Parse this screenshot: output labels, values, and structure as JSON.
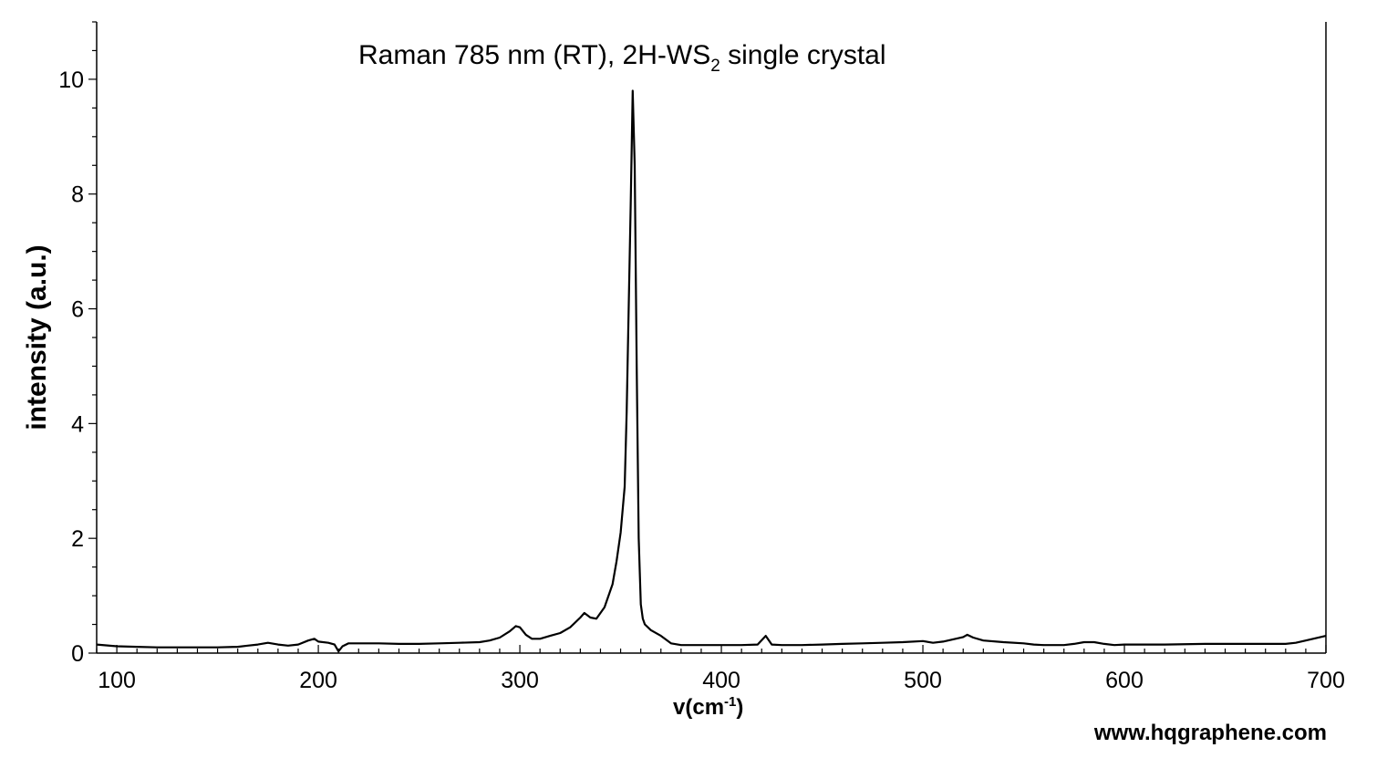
{
  "chart_data": {
    "type": "line",
    "title": {
      "prefix": "Raman 785 nm (RT), 2H-WS",
      "subscript": "2",
      "suffix": " single crystal"
    },
    "xlabel": {
      "text": "v(cm",
      "superscript": "-1",
      "suffix": ")"
    },
    "ylabel": "intensity (a.u.)",
    "xlim": [
      90,
      700
    ],
    "ylim": [
      0,
      11
    ],
    "x_ticks": [
      100,
      200,
      300,
      400,
      500,
      600,
      700
    ],
    "y_ticks": [
      0,
      2,
      4,
      6,
      8,
      10
    ],
    "grid": false,
    "legend": "none",
    "line_color": "#000000",
    "series": [
      {
        "x": [
          90,
          100,
          110,
          120,
          130,
          140,
          150,
          160,
          165,
          170,
          175,
          180,
          185,
          190,
          195,
          198,
          200,
          205,
          208,
          210,
          212,
          215,
          220,
          230,
          240,
          250,
          260,
          270,
          280,
          285,
          290,
          295,
          298,
          300,
          303,
          306,
          310,
          315,
          320,
          325,
          330,
          332,
          335,
          338,
          342,
          346,
          348,
          350,
          352,
          353,
          355,
          356,
          357,
          358,
          359,
          360,
          361,
          362,
          365,
          370,
          375,
          380,
          390,
          400,
          410,
          418,
          422,
          425,
          430,
          440,
          450,
          460,
          470,
          480,
          490,
          500,
          505,
          510,
          515,
          520,
          522,
          525,
          530,
          540,
          550,
          555,
          560,
          570,
          575,
          580,
          585,
          590,
          595,
          600,
          620,
          640,
          660,
          680,
          685,
          690,
          700
        ],
        "y": [
          0.15,
          0.12,
          0.11,
          0.1,
          0.1,
          0.1,
          0.1,
          0.11,
          0.13,
          0.15,
          0.18,
          0.15,
          0.13,
          0.15,
          0.22,
          0.25,
          0.2,
          0.18,
          0.15,
          0.03,
          0.12,
          0.17,
          0.17,
          0.17,
          0.16,
          0.16,
          0.17,
          0.18,
          0.19,
          0.22,
          0.27,
          0.38,
          0.47,
          0.45,
          0.32,
          0.25,
          0.25,
          0.3,
          0.35,
          0.45,
          0.62,
          0.7,
          0.62,
          0.6,
          0.8,
          1.2,
          1.6,
          2.1,
          2.9,
          4.2,
          7.8,
          9.8,
          8.5,
          5.0,
          2.0,
          0.85,
          0.6,
          0.5,
          0.4,
          0.3,
          0.17,
          0.14,
          0.14,
          0.14,
          0.14,
          0.15,
          0.3,
          0.15,
          0.14,
          0.14,
          0.15,
          0.16,
          0.17,
          0.18,
          0.19,
          0.21,
          0.18,
          0.2,
          0.24,
          0.28,
          0.32,
          0.27,
          0.22,
          0.19,
          0.17,
          0.15,
          0.14,
          0.14,
          0.16,
          0.19,
          0.19,
          0.16,
          0.14,
          0.15,
          0.15,
          0.16,
          0.16,
          0.16,
          0.18,
          0.22,
          0.3
        ]
      }
    ]
  },
  "watermark": "www.hqgraphene.com"
}
